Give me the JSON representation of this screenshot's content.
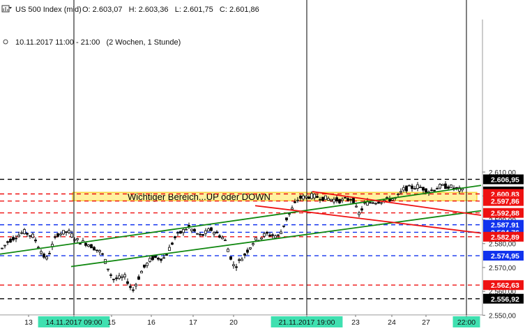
{
  "header": {
    "instrument": "US 500 Index (mid)",
    "ohlc": "O: 2.603,07   H: 2.603,36   L: 2.601,75   C: 2.601,86",
    "period": "10.11.2017 11:00 - 21:00   (2 Wochen, 1 Stunde)"
  },
  "chart_data": {
    "type": "candlestick",
    "title": "US 500 Index (mid)",
    "timeframe": "1 Stunde",
    "range": "2 Wochen",
    "ylim": [
      2550,
      2613
    ],
    "last": {
      "open": 2603.07,
      "high": 2603.36,
      "low": 2601.75,
      "close": 2601.86
    },
    "y_ticks": [
      "2.550,00",
      "2.560,00",
      "2.570,00",
      "2.580,00",
      "2.590,00",
      "2.600,00",
      "2.610,00"
    ],
    "x_labels": [
      {
        "label": "13"
      },
      {
        "label": "14.11.2017 09:00",
        "highlight": true
      },
      {
        "label": "15"
      },
      {
        "label": "16"
      },
      {
        "label": "17"
      },
      {
        "label": "20"
      },
      {
        "label": "21.11.2017 19:00",
        "highlight": true
      },
      {
        "label": "23"
      },
      {
        "label": "24"
      },
      {
        "label": "27"
      },
      {
        "label": "22:00",
        "highlight": true
      }
    ],
    "levels": [
      {
        "value": 2606.95,
        "label": "2.606,95",
        "color": "#000000",
        "badge": "#000000"
      },
      {
        "value": 2601.86,
        "label": "2.601,86",
        "color": "#000000",
        "badge": "#000000",
        "type": "last"
      },
      {
        "value": 2600.83,
        "label": "2.600,83",
        "color": "#ee1111",
        "badge": "#ee1111"
      },
      {
        "value": 2597.86,
        "label": "2.597,86",
        "color": "#ee1111",
        "badge": "#ee1111"
      },
      {
        "value": 2592.88,
        "label": "2.592,88",
        "color": "#ee1111",
        "badge": "#ee1111"
      },
      {
        "value": 2587.91,
        "label": "2.587,91",
        "color": "#1133ee",
        "badge": "#1133ee"
      },
      {
        "value": 2584.76,
        "label": "2.584,76",
        "color": "#1133ee",
        "badge": "#1133ee"
      },
      {
        "value": 2582.89,
        "label": "2.582,89",
        "color": "#ee1111",
        "badge": "#ee1111"
      },
      {
        "value": 2574.95,
        "label": "2.574,95",
        "color": "#1133ee",
        "badge": "#1133ee"
      },
      {
        "value": 2562.63,
        "label": "2.562,63",
        "color": "#ee1111",
        "badge": "#ee1111"
      },
      {
        "value": 2556.92,
        "label": "2.556,92",
        "color": "#000000",
        "badge": "#000000"
      }
    ],
    "zone": {
      "from": 2598,
      "to": 2601.5,
      "label": "Wichtiger Bereich...UP oder DOWN",
      "color": "#fff1a0"
    },
    "colors": {
      "up": "#ffffff",
      "down": "#000000",
      "green_channel": "#118811",
      "red_channel": "#ee1111"
    }
  }
}
